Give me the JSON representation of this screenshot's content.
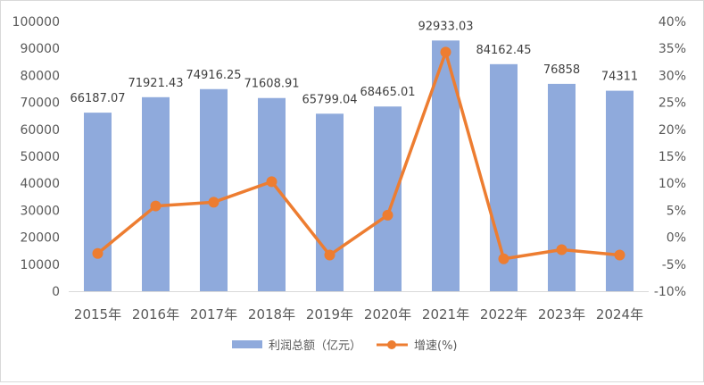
{
  "chart_data": {
    "type": "bar",
    "categories": [
      "2015年",
      "2016年",
      "2017年",
      "2018年",
      "2019年",
      "2020年",
      "2021年",
      "2022年",
      "2023年",
      "2024年"
    ],
    "series": [
      {
        "name": "利润总额（亿元）",
        "type": "bar",
        "axis": "left",
        "values": [
          66187.07,
          71921.43,
          74916.25,
          71608.91,
          65799.04,
          68465.01,
          92933.03,
          84162.45,
          76858,
          74311
        ],
        "labels": [
          "66187.07",
          "71921.43",
          "74916.25",
          "71608.91",
          "65799.04",
          "68465.01",
          "92933.03",
          "84162.45",
          "76858",
          "74311"
        ],
        "color": "#8faadc"
      },
      {
        "name": "增速(%)",
        "type": "line",
        "axis": "right",
        "values": [
          -3.0,
          5.8,
          6.5,
          10.3,
          -3.3,
          4.1,
          34.3,
          -4.0,
          -2.3,
          -3.3
        ],
        "color": "#ed7d31"
      }
    ],
    "left_axis": {
      "ylim": [
        0,
        100000
      ],
      "ticks": [
        "0",
        "10000",
        "20000",
        "30000",
        "40000",
        "50000",
        "60000",
        "70000",
        "80000",
        "90000",
        "100000"
      ]
    },
    "right_axis": {
      "ylim": [
        -10,
        40
      ],
      "ticks": [
        "-10%",
        "-5%",
        "0%",
        "5%",
        "10%",
        "15%",
        "20%",
        "25%",
        "30%",
        "35%",
        "40%"
      ]
    },
    "grid": false,
    "legend_position": "bottom"
  }
}
